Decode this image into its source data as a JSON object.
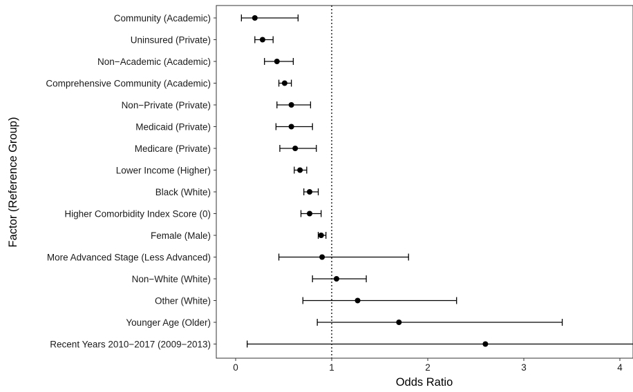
{
  "chart_data": {
    "type": "forest",
    "xlabel": "Odds Ratio",
    "ylabel": "Factor (Reference Group)",
    "xlim": [
      -0.2,
      4.15
    ],
    "x_ticks": [
      0,
      1,
      2,
      3,
      4
    ],
    "x_tick_labels": [
      "0",
      "1",
      "2",
      "3",
      "4"
    ],
    "reference_line": 1,
    "reference_line_style": "dotted",
    "grid": false,
    "legend": "none",
    "point_color": "#000000",
    "categories": [
      "Community (Academic)",
      "Uninsured (Private)",
      "Non−Academic (Academic)",
      "Comprehensive Community (Academic)",
      "Non−Private (Private)",
      "Medicaid (Private)",
      "Medicare (Private)",
      "Lower Income (Higher)",
      "Black (White)",
      "Higher Comorbidity Index Score (0)",
      "Female (Male)",
      "More Advanced Stage (Less Advanced)",
      "Non−White (White)",
      "Other (White)",
      "Younger Age (Older)",
      "Recent Years 2010−2017 (2009−2013)"
    ],
    "estimates": [
      0.2,
      0.28,
      0.43,
      0.51,
      0.58,
      0.58,
      0.62,
      0.67,
      0.77,
      0.77,
      0.89,
      0.9,
      1.05,
      1.27,
      1.7,
      2.6
    ],
    "lower": [
      0.06,
      0.2,
      0.3,
      0.45,
      0.43,
      0.42,
      0.46,
      0.61,
      0.71,
      0.68,
      0.86,
      0.45,
      0.8,
      0.7,
      0.85,
      0.12
    ],
    "upper": [
      0.65,
      0.39,
      0.6,
      0.58,
      0.78,
      0.8,
      0.84,
      0.74,
      0.86,
      0.89,
      0.94,
      1.8,
      1.36,
      2.3,
      3.4,
      4.15
    ]
  }
}
